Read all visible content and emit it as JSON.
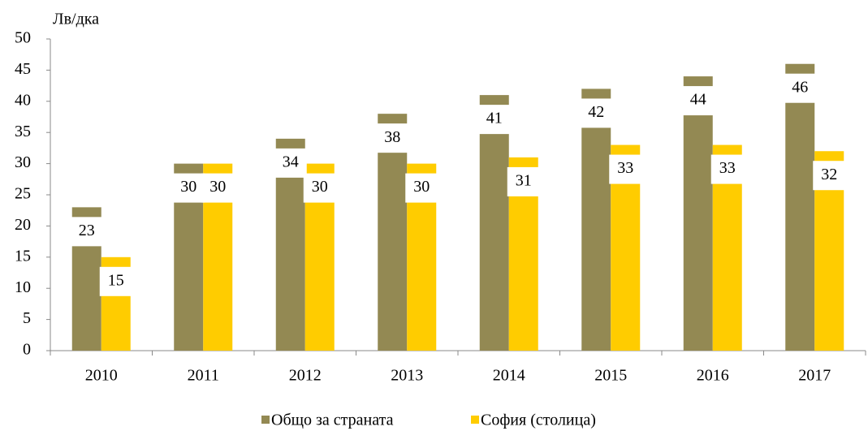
{
  "chart_data": {
    "type": "bar",
    "y_axis_label": "Лв/дка",
    "categories": [
      "2010",
      "2011",
      "2012",
      "2013",
      "2014",
      "2015",
      "2016",
      "2017"
    ],
    "series": [
      {
        "name": "Общо за страната",
        "color": "#938953",
        "values": [
          23,
          30,
          34,
          38,
          41,
          42,
          44,
          46
        ]
      },
      {
        "name": "София (столица)",
        "color": "#ffcc00",
        "values": [
          15,
          30,
          30,
          30,
          31,
          33,
          33,
          32
        ]
      }
    ],
    "ylim": [
      0,
      50
    ],
    "yticks": [
      0,
      5,
      10,
      15,
      20,
      25,
      30,
      35,
      40,
      45,
      50
    ],
    "legend": "bottom",
    "grid": false
  }
}
